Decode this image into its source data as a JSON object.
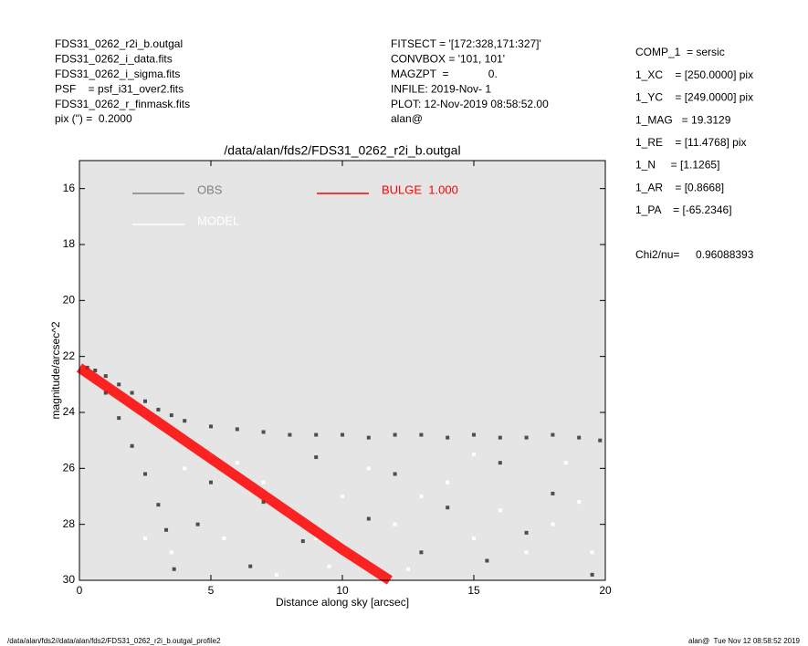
{
  "header": {
    "left": [
      "FDS31_0262_r2i_b.outgal",
      "FDS31_0262_i_data.fits",
      "FDS31_0262_i_sigma.fits",
      "PSF    = psf_i31_over2.fits",
      "FDS31_0262_r_finmask.fits",
      "pix (\") =  0.2000"
    ],
    "center": [
      "FITSECT = '[172:328,171:327]'",
      "CONVBOX = '101, 101'",
      "MAGZPT  =             0.",
      "INFILE: 2019-Nov- 1",
      "PLOT: 12-Nov-2019 08:58:52.00",
      "alan@"
    ]
  },
  "params": [
    "COMP_1  = sersic",
    "1_XC    = [250.0000] pix",
    "1_YC    = [249.0000] pix",
    "1_MAG   = 19.3129",
    "1_RE    = [11.4768] pix",
    "1_N     = [1.1265]",
    "1_AR    = [0.8668]",
    "1_PA    = [-65.2346]"
  ],
  "chi2": {
    "label": "Chi2/nu=",
    "value": "0.96088393"
  },
  "footer": {
    "left": "/data/alan/fds2//data/alan/fds2/FDS31_0262_r2i_b.outgal_profile2",
    "right": "alan@  Tue Nov 12 08:58:52 2019"
  },
  "chart_data": {
    "type": "scatter",
    "title": "/data/alan/fds2/FDS31_0262_r2i_b.outgal",
    "xlabel": "Distance along sky [arcsec]",
    "ylabel": "magnitude/arcsec^2",
    "xlim": [
      0,
      20
    ],
    "ylim": [
      30,
      15
    ],
    "xticks": [
      0,
      5,
      10,
      15,
      20
    ],
    "yticks": [
      16,
      18,
      20,
      22,
      24,
      26,
      28,
      30
    ],
    "series": [
      {
        "name": "OBS",
        "color": "#4d4d4d",
        "legend_color": "#808080",
        "marker": "square",
        "x": [
          0.3,
          0.6,
          1,
          1.5,
          2,
          2.5,
          3,
          3.5,
          4,
          5,
          6,
          7,
          8,
          9,
          10,
          11,
          12,
          13,
          14,
          15,
          16,
          17,
          18,
          19,
          19.8,
          1,
          1.5,
          2,
          2.5,
          3,
          3.3,
          3.6,
          5,
          7,
          9,
          12,
          14,
          16,
          18,
          6.5,
          13,
          17,
          19.5,
          8.5,
          11,
          15.5,
          4.5
        ],
        "values": [
          22.4,
          22.5,
          22.7,
          23.0,
          23.3,
          23.6,
          23.9,
          24.1,
          24.3,
          24.5,
          24.6,
          24.7,
          24.8,
          24.8,
          24.8,
          24.9,
          24.8,
          24.8,
          24.9,
          24.8,
          24.9,
          24.9,
          24.8,
          24.9,
          25.0,
          23.3,
          24.2,
          25.2,
          26.2,
          27.3,
          28.2,
          29.6,
          26.5,
          27.2,
          25.6,
          26.2,
          27.4,
          25.8,
          26.9,
          29.5,
          29.0,
          28.3,
          29.8,
          28.6,
          27.8,
          29.3,
          28.0
        ]
      },
      {
        "name": "MODEL",
        "color": "#ffffff",
        "legend_color": "#ffffff",
        "marker": "square",
        "x": [
          4,
          5,
          6,
          7,
          8,
          9,
          10,
          11,
          12,
          13,
          14,
          15,
          16,
          17,
          18,
          19,
          19.5,
          5.5,
          3.5,
          7.5,
          9.5,
          12.5,
          15,
          18.5,
          2.5
        ],
        "values": [
          26.0,
          25.5,
          25.8,
          26.5,
          27.5,
          28.5,
          27.0,
          26.0,
          28.0,
          27.0,
          26.5,
          28.5,
          27.5,
          29.0,
          28.0,
          27.2,
          29.0,
          28.5,
          29.0,
          29.8,
          29.5,
          29.6,
          25.5,
          25.8,
          28.5
        ]
      },
      {
        "name": "BULGE  1.000",
        "color": "#ff0000",
        "legend_color": "#ff0000",
        "marker": "band",
        "x": [
          0,
          2,
          4,
          6,
          8,
          10,
          11.8
        ],
        "values": [
          22.4,
          23.7,
          25.0,
          26.3,
          27.6,
          28.9,
          30
        ]
      }
    ]
  }
}
